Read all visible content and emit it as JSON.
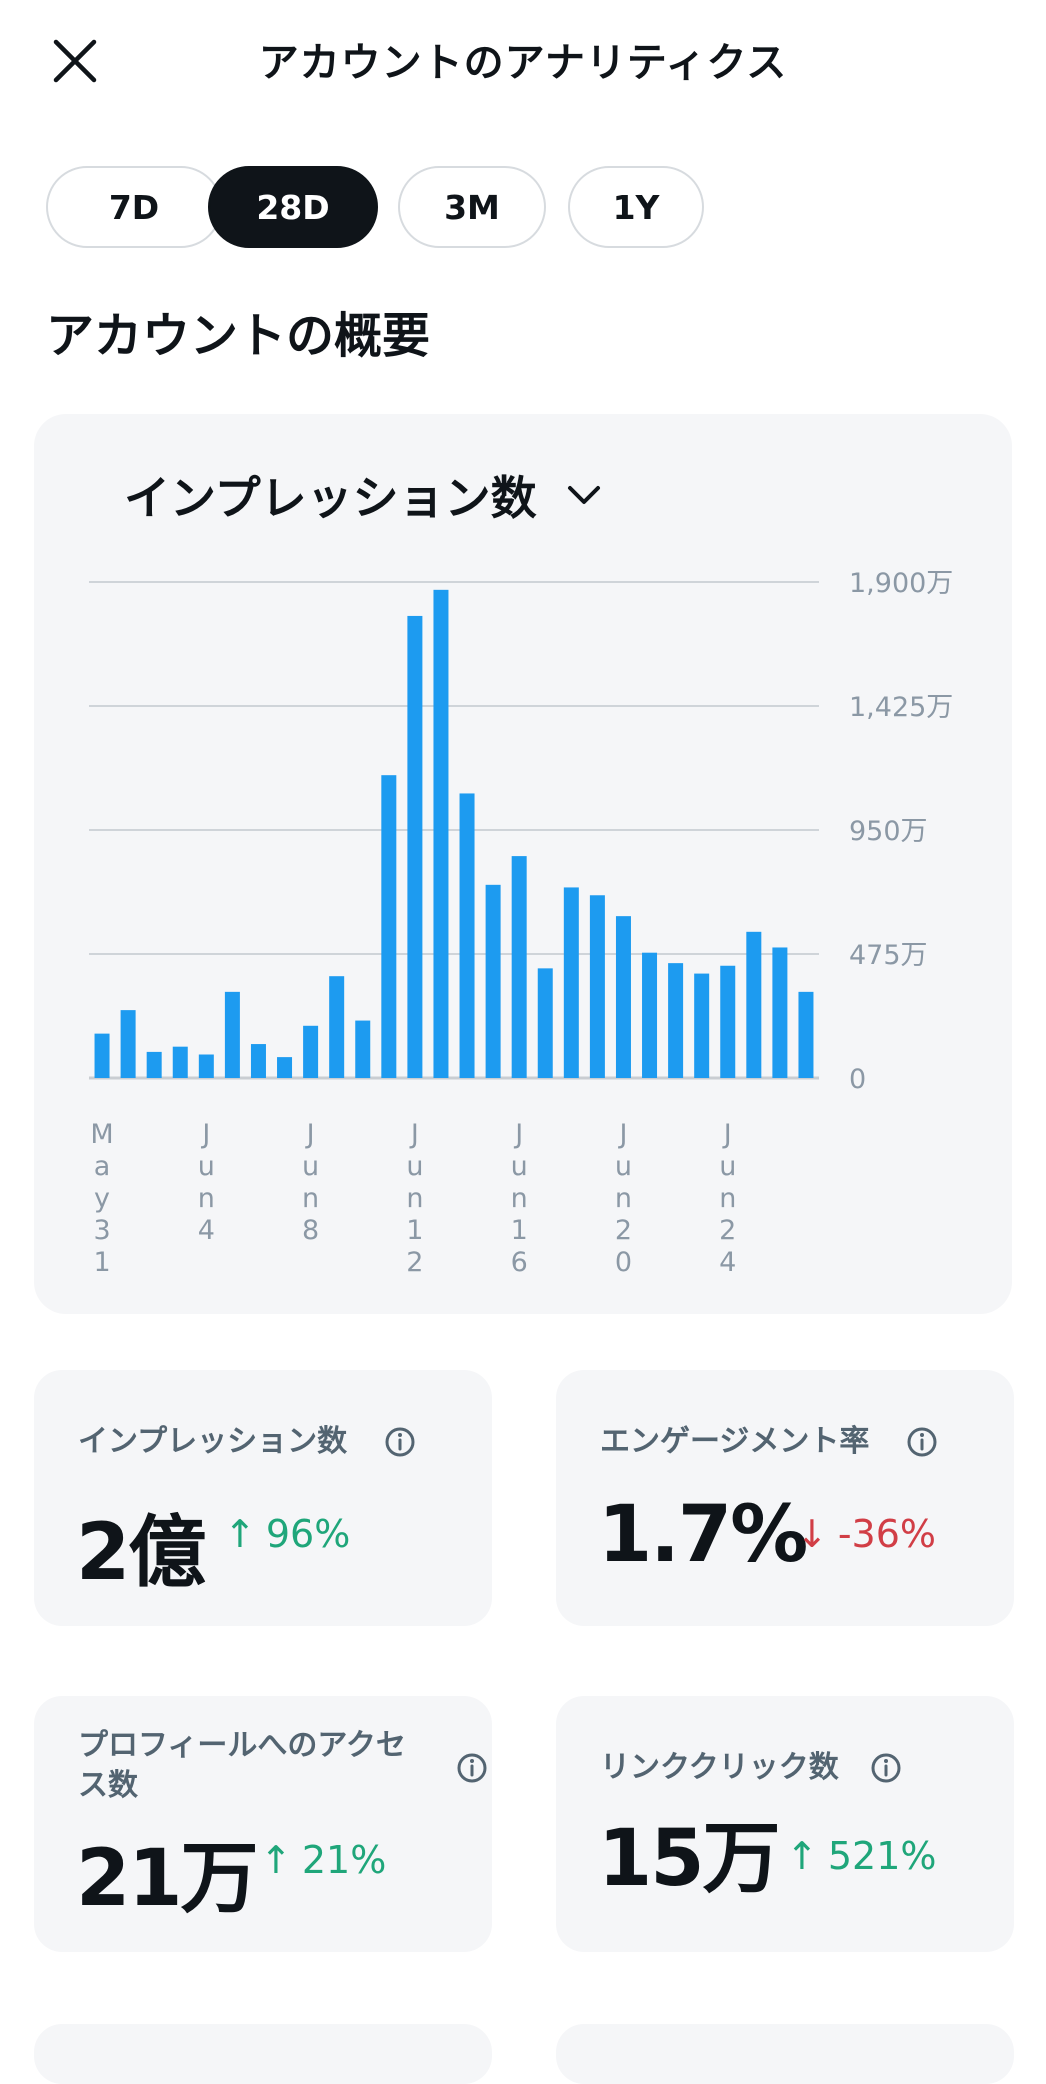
{
  "header": {
    "title": "アカウントのアナリティクス"
  },
  "ranges": [
    {
      "label": "7D",
      "active": false
    },
    {
      "label": "28D",
      "active": true
    },
    {
      "label": "3M",
      "active": false
    },
    {
      "label": "1Y",
      "active": false
    }
  ],
  "section_title": "アカウントの概要",
  "metric_selector": {
    "label": "インプレッション数"
  },
  "chart_data": {
    "type": "bar",
    "title": "",
    "xlabel": "",
    "ylabel": "",
    "ylim": [
      0,
      19000000
    ],
    "y_ticks": [
      0,
      4750000,
      9500000,
      14250000,
      19000000
    ],
    "y_tick_labels": [
      "0",
      "475万",
      "950万",
      "1,425万",
      "1,900万"
    ],
    "x_tick_labels": [
      {
        "index": 0,
        "label": "May31"
      },
      {
        "index": 4,
        "label": "Jun4"
      },
      {
        "index": 8,
        "label": "Jun8"
      },
      {
        "index": 12,
        "label": "Jun12"
      },
      {
        "index": 16,
        "label": "Jun16"
      },
      {
        "index": 20,
        "label": "Jun20"
      },
      {
        "index": 24,
        "label": "Jun24"
      }
    ],
    "categories": [
      "May31",
      "Jun1",
      "Jun2",
      "Jun3",
      "Jun4",
      "Jun5",
      "Jun6",
      "Jun7",
      "Jun8",
      "Jun9",
      "Jun10",
      "Jun11",
      "Jun12",
      "Jun13",
      "Jun14",
      "Jun15",
      "Jun16",
      "Jun17",
      "Jun18",
      "Jun19",
      "Jun20",
      "Jun21",
      "Jun22",
      "Jun23",
      "Jun24",
      "Jun25",
      "Jun26",
      "Jun27"
    ],
    "values": [
      1700000,
      2600000,
      1000000,
      1200000,
      900000,
      3300000,
      1300000,
      800000,
      2000000,
      3900000,
      2200000,
      11600000,
      17700000,
      18700000,
      10900000,
      7400000,
      8500000,
      4200000,
      7300000,
      7000000,
      6200000,
      4800000,
      4400000,
      4000000,
      4300000,
      5600000,
      5000000,
      3300000
    ],
    "grid": true,
    "color": "#1d9bf0"
  },
  "stats": [
    {
      "label_lines": [
        "インプレッション数"
      ],
      "value": "2億",
      "arrow": "↑",
      "change": "96%",
      "direction": "up"
    },
    {
      "label_lines": [
        "エンゲージメント率"
      ],
      "value": "1.7%",
      "arrow": "↓",
      "change": "-36%",
      "direction": "down"
    },
    {
      "label_lines": [
        "プロフィールへのアクセ",
        "ス数"
      ],
      "value": "21万",
      "arrow": "↑",
      "change": "21%",
      "direction": "up"
    },
    {
      "label_lines": [
        "リンククリック数"
      ],
      "value": "15万",
      "arrow": "↑",
      "change": "521%",
      "direction": "up"
    }
  ],
  "colors": {
    "accent": "#1d9bf0",
    "up": "#1fa67a",
    "down": "#d13e46",
    "card": "#f5f6f8"
  }
}
